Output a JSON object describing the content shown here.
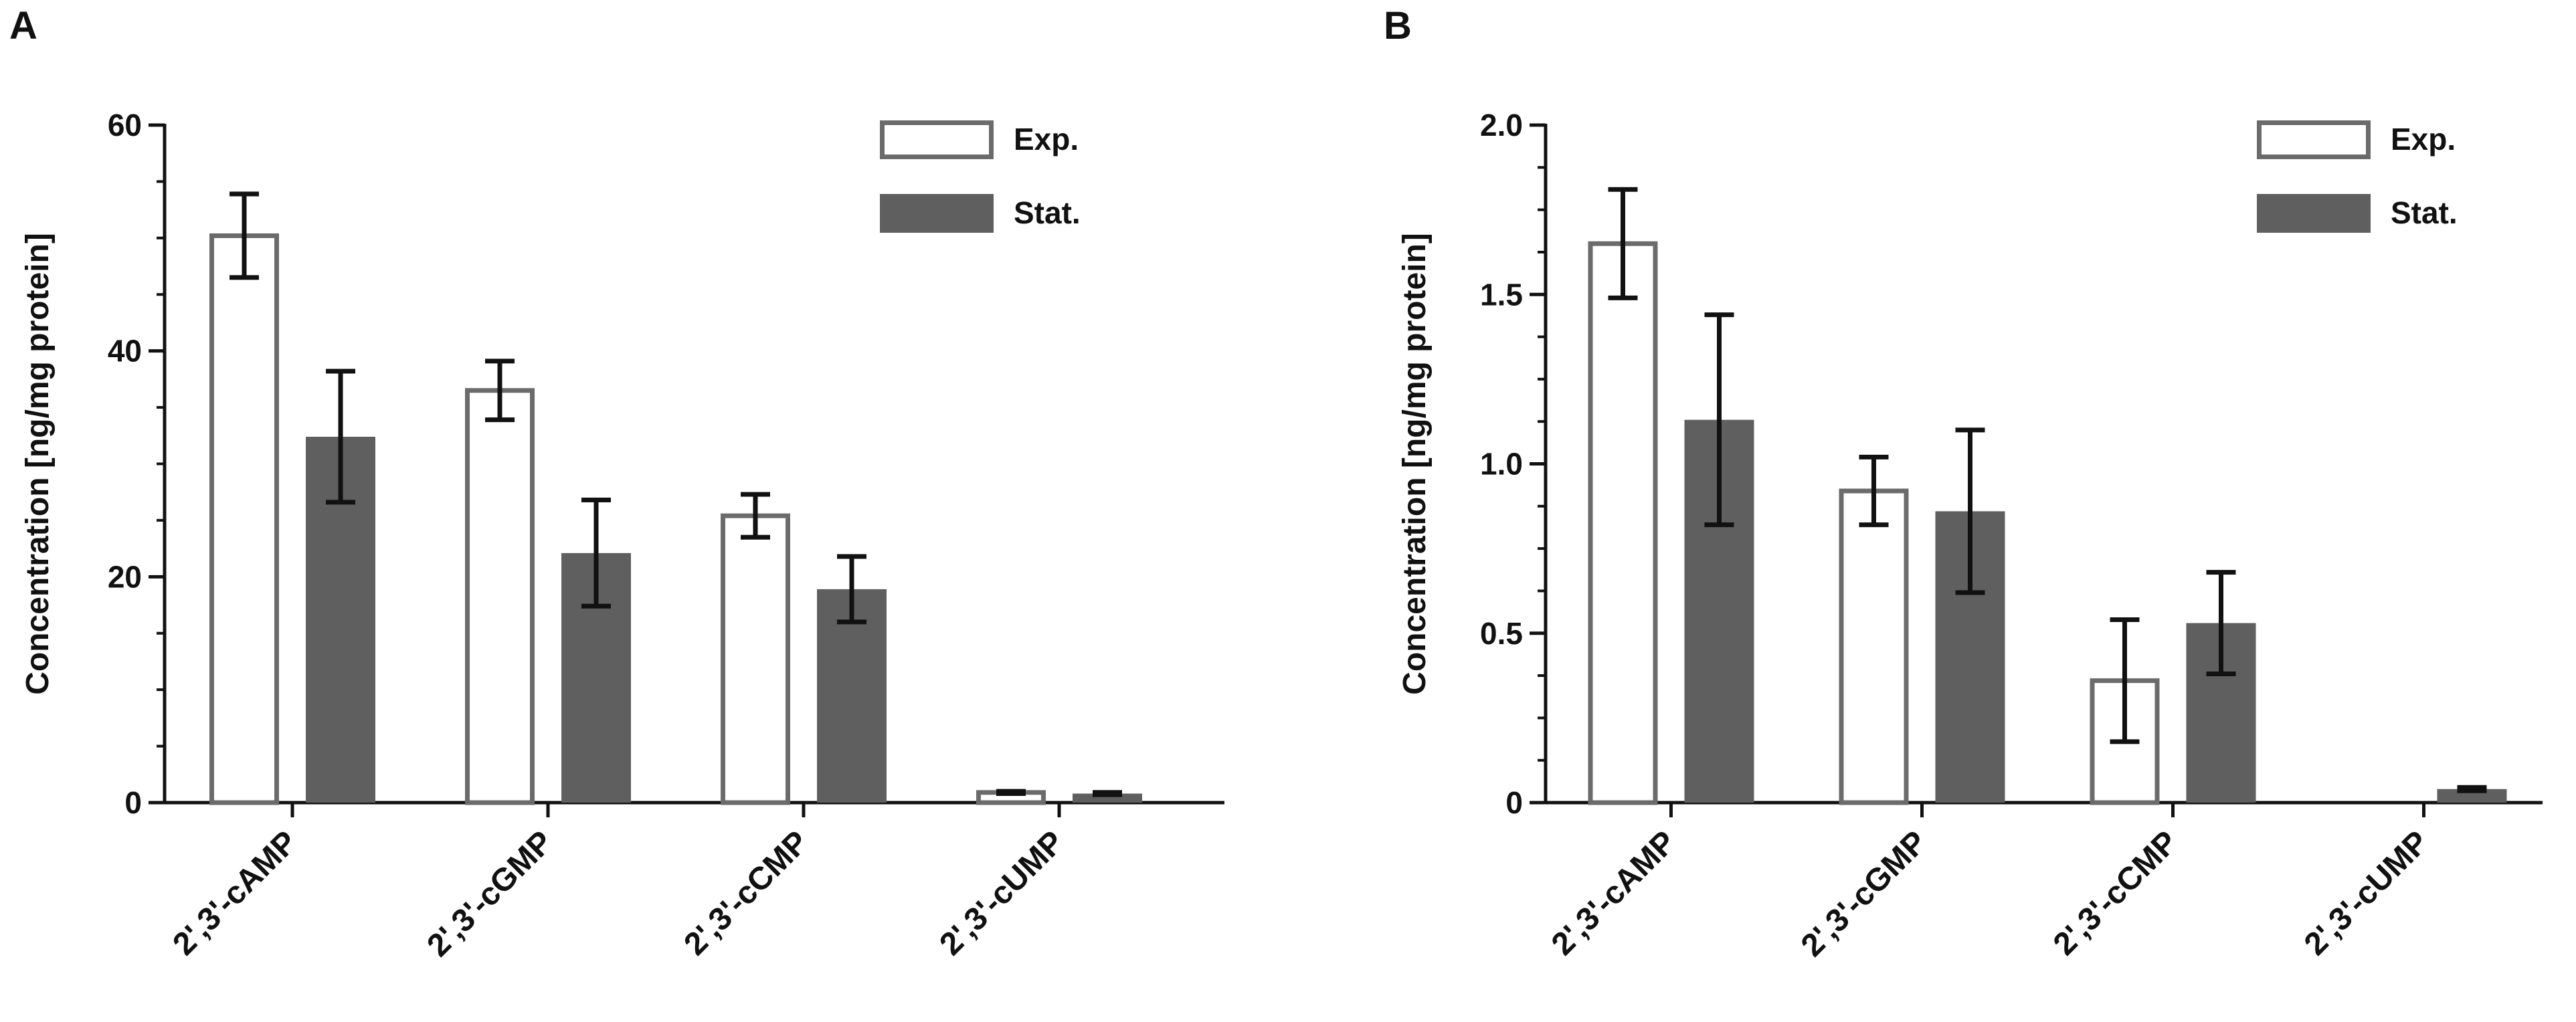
{
  "figure": {
    "panels": [
      "A",
      "B"
    ]
  },
  "colors": {
    "exp_fill": "#ffffff",
    "exp_stroke": "#6b6b6b",
    "stat_fill": "#5f5f5f",
    "axis": "#111111",
    "error": "#111111"
  },
  "chart_data": [
    {
      "type": "bar",
      "panel": "A",
      "categories": [
        "2',3'-cAMP",
        "2',3'-cGMP",
        "2',3'-cCMP",
        "2',3'-cUMP"
      ],
      "series": [
        {
          "name": "Exp.",
          "values": [
            50.2,
            36.5,
            25.4,
            0.9
          ],
          "errors": [
            3.7,
            2.6,
            1.9,
            0.1
          ]
        },
        {
          "name": "Stat.",
          "values": [
            32.4,
            22.1,
            18.9,
            0.8
          ],
          "errors": [
            5.8,
            4.7,
            2.9,
            0.1
          ]
        }
      ],
      "title": "",
      "xlabel": "",
      "ylabel": "Concentration [ng/mg protein]",
      "ylim": [
        0,
        60
      ],
      "yticks": [
        0,
        20,
        40,
        60
      ],
      "ytick_labels": [
        "0",
        "20",
        "40",
        "60"
      ],
      "legend": {
        "placement": "top-right",
        "entries": [
          "Exp.",
          "Stat."
        ]
      },
      "grid": false
    },
    {
      "type": "bar",
      "panel": "B",
      "categories": [
        "2',3'-cAMP",
        "2',3'-cGMP",
        "2',3'-cCMP",
        "2',3'-cUMP"
      ],
      "series": [
        {
          "name": "Exp.",
          "values": [
            1.65,
            0.92,
            0.36,
            null
          ],
          "errors": [
            0.16,
            0.1,
            0.18,
            null
          ]
        },
        {
          "name": "Stat.",
          "values": [
            1.13,
            0.86,
            0.53,
            0.04
          ],
          "errors": [
            0.31,
            0.24,
            0.15,
            0.005
          ]
        }
      ],
      "title": "",
      "xlabel": "",
      "ylabel": "Concentration [ng/mg protein]",
      "ylim": [
        0,
        2.0
      ],
      "yticks": [
        0,
        0.5,
        1.0,
        1.5,
        2.0
      ],
      "ytick_labels": [
        "0",
        "0.5",
        "1.0",
        "1.5",
        "2.0"
      ],
      "legend": {
        "placement": "top-right",
        "entries": [
          "Exp.",
          "Stat."
        ]
      },
      "grid": false
    }
  ]
}
